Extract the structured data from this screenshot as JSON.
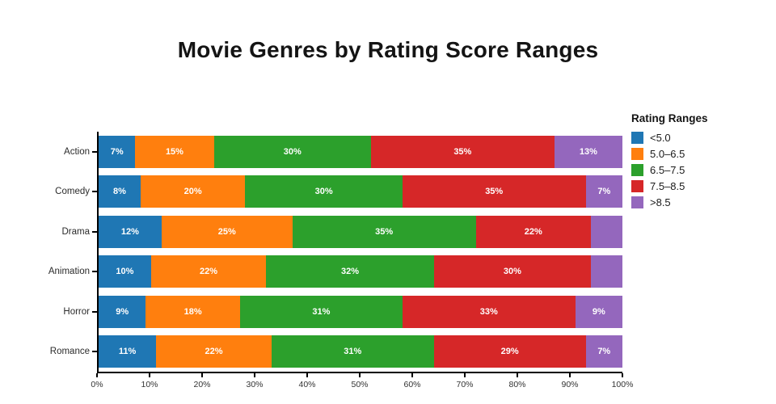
{
  "title": "Movie Genres by Rating Score Ranges",
  "legend": {
    "title": "Rating Ranges",
    "entries": [
      {
        "label": "<5.0",
        "color": "#1f77b4"
      },
      {
        "label": "5.0–6.5",
        "color": "#ff7f0e"
      },
      {
        "label": "6.5–7.5",
        "color": "#2ca02c"
      },
      {
        "label": "7.5–8.5",
        "color": "#d62728"
      },
      {
        "label": ">8.5",
        "color": "#9467bd"
      }
    ]
  },
  "chart_data": {
    "type": "bar",
    "orientation": "horizontal",
    "stacked": true,
    "title": "Movie Genres by Rating Score Ranges",
    "legend_title": "Rating Ranges",
    "legend_position": "right",
    "categories": [
      "Action",
      "Comedy",
      "Drama",
      "Animation",
      "Horror",
      "Romance"
    ],
    "series": [
      {
        "name": "<5.0",
        "color": "#1f77b4",
        "values": [
          7,
          8,
          12,
          10,
          9,
          11
        ]
      },
      {
        "name": "5.0–6.5",
        "color": "#ff7f0e",
        "values": [
          15,
          20,
          25,
          22,
          18,
          22
        ]
      },
      {
        "name": "6.5–7.5",
        "color": "#2ca02c",
        "values": [
          30,
          30,
          35,
          32,
          31,
          31
        ]
      },
      {
        "name": "7.5–8.5",
        "color": "#d62728",
        "values": [
          35,
          35,
          22,
          30,
          33,
          29
        ]
      },
      {
        "name": ">8.5",
        "color": "#9467bd",
        "values": [
          13,
          7,
          6,
          6,
          9,
          7
        ]
      }
    ],
    "bar_label_format": "percent",
    "bar_label_min_value": 7,
    "xlabel": "",
    "ylabel": "",
    "xlim": [
      0,
      100
    ],
    "x_ticks": [
      "0%",
      "10%",
      "20%",
      "30%",
      "40%",
      "50%",
      "60%",
      "70%",
      "80%",
      "90%",
      "100%"
    ],
    "grid": false
  }
}
